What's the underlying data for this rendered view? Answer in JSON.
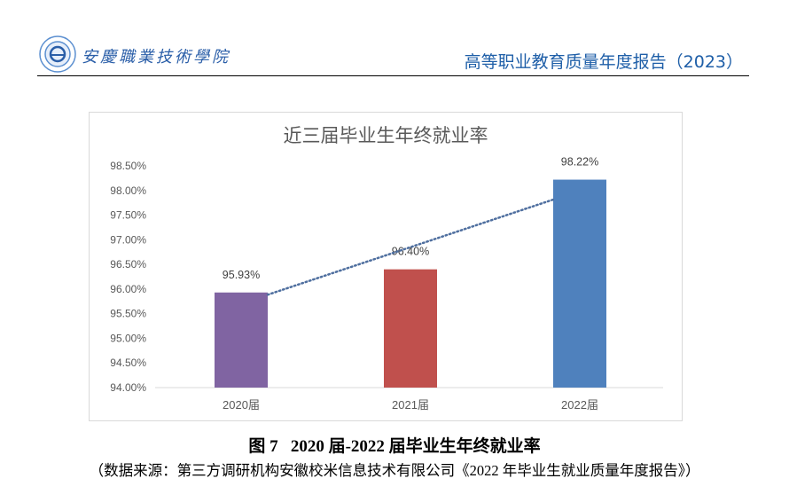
{
  "header": {
    "school_name": "安慶職業技術學院",
    "report_title": "高等职业教育质量年度报告（2023）",
    "logo_icon": "school-seal-logo"
  },
  "chart_data": {
    "type": "bar",
    "title": "近三届毕业生年终就业率",
    "categories": [
      "2020届",
      "2021届",
      "2022届"
    ],
    "values": [
      95.93,
      96.4,
      98.22
    ],
    "data_labels": [
      "95.93%",
      "96.40%",
      "98.22%"
    ],
    "colors": [
      "#8064a2",
      "#c0504d",
      "#4f81bd"
    ],
    "ylim": [
      94.0,
      98.5
    ],
    "yticks": [
      "94.00%",
      "94.50%",
      "95.00%",
      "95.50%",
      "96.00%",
      "96.50%",
      "97.00%",
      "97.50%",
      "98.00%",
      "98.50%"
    ],
    "trendline": {
      "type": "linear",
      "style": "dotted",
      "color": "#4f6f9f"
    },
    "grid": false,
    "legend": "none",
    "xlabel": "",
    "ylabel": ""
  },
  "caption": {
    "figure_title": "图 7   2020 届-2022 届毕业生年终就业率",
    "source": "（数据来源：第三方调研机构安徽校米信息技术有限公司《2022 年毕业生就业质量年度报告》）"
  }
}
